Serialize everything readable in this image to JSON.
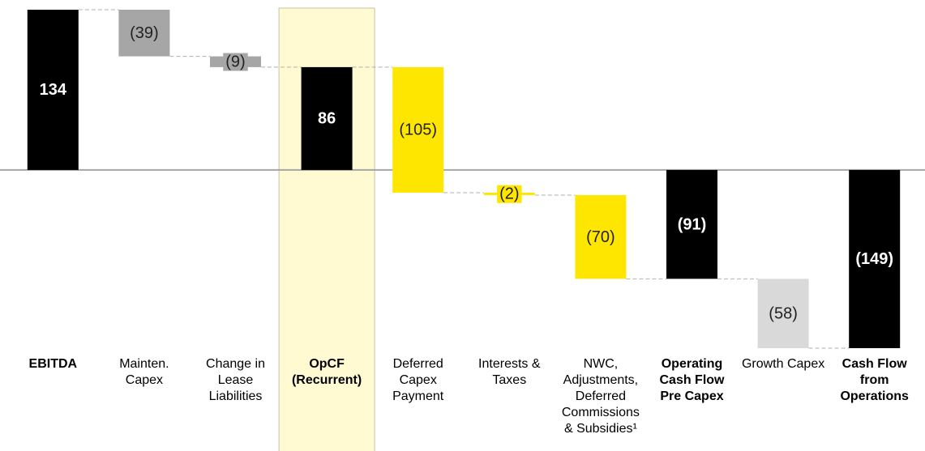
{
  "chart_data": {
    "type": "waterfall",
    "categories": [
      "EBITDA",
      "Mainten. Capex",
      "Change in Lease Liabilities",
      "OpCF (Recurrent)",
      "Deferred Capex Payment",
      "Interests & Taxes",
      "NWC, Adjustments, Deferred Commissions & Subsidies¹",
      "Operating Cash Flow Pre Capex",
      "Growth Capex",
      "Cash Flow from Operations"
    ],
    "values": [
      134,
      -39,
      -9,
      86,
      -105,
      -2,
      -70,
      -91,
      -58,
      -149
    ],
    "value_labels": [
      "134",
      "(39)",
      "(9)",
      "86",
      "(105)",
      "(2)",
      "(70)",
      "(91)",
      "(58)",
      "(149)"
    ],
    "is_total": [
      true,
      false,
      false,
      true,
      false,
      false,
      false,
      true,
      false,
      true
    ],
    "colors": [
      "#000000",
      "#a6a6a6",
      "#a6a6a6",
      "#000000",
      "#ffe600",
      "#ffe600",
      "#ffe600",
      "#000000",
      "#d9d9d9",
      "#000000"
    ],
    "highlight": 3
  }
}
